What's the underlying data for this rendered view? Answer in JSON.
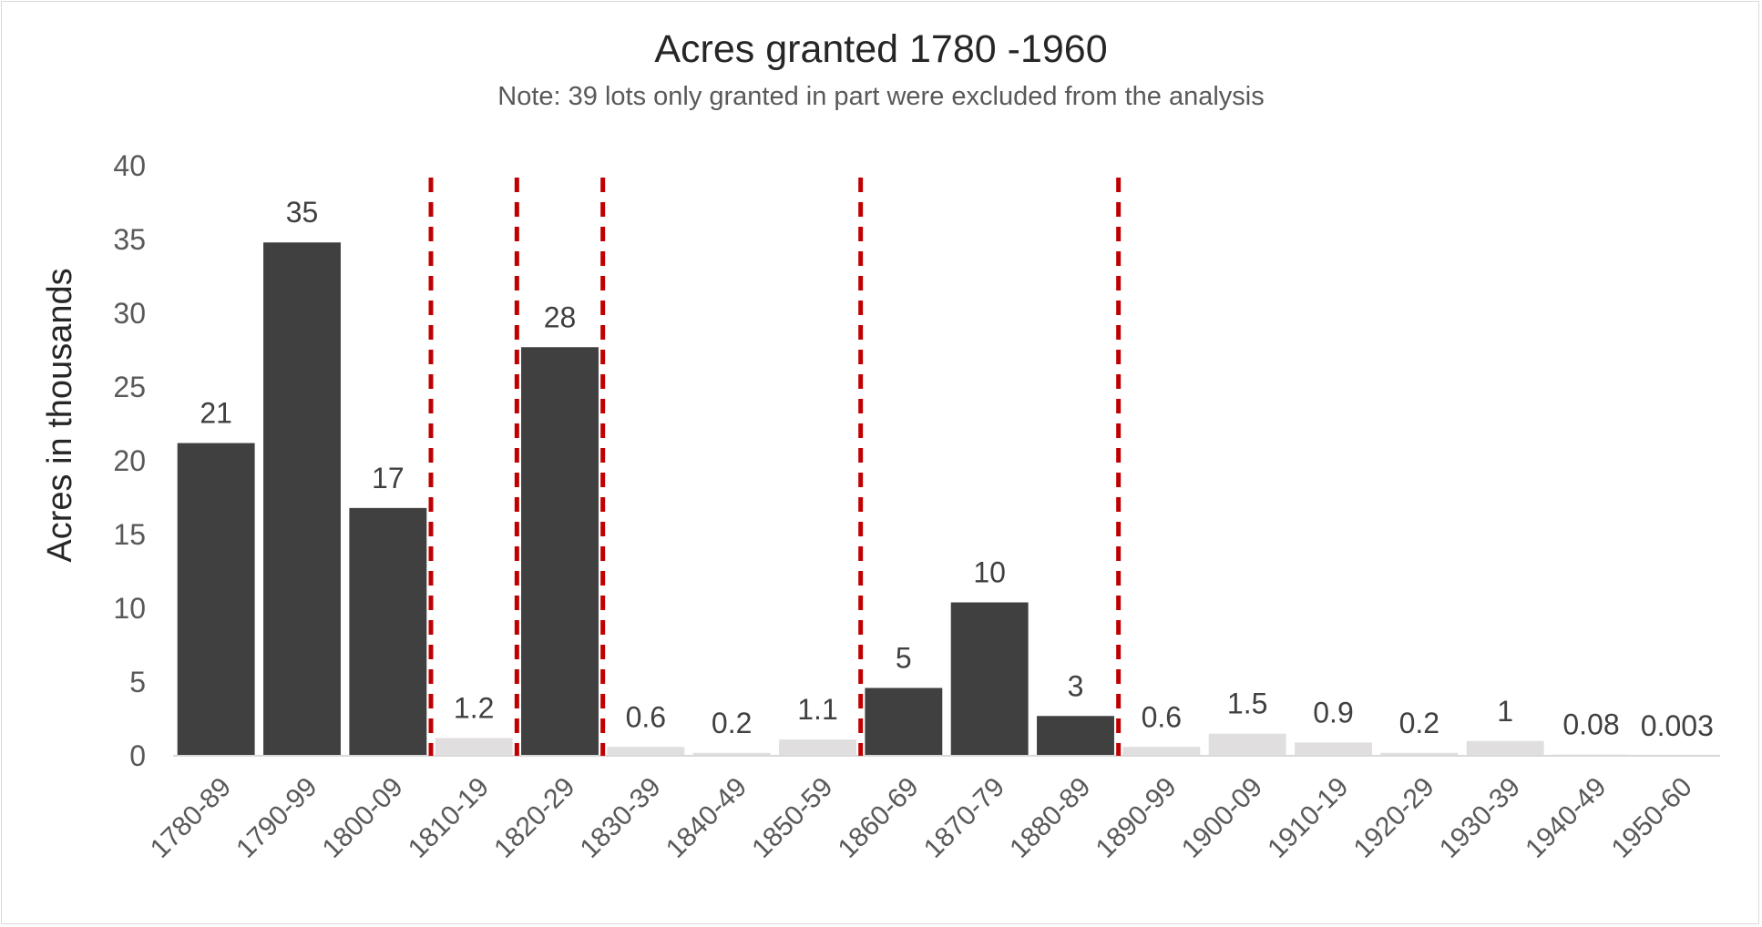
{
  "chart_data": {
    "type": "bar",
    "title": "Acres granted 1780 -1960",
    "subtitle": "Note: 39 lots only granted in part were excluded from the analysis",
    "xlabel": "",
    "ylabel": "Acres in thousands",
    "ylim": [
      0,
      40
    ],
    "yticks": [
      "0",
      "5",
      "10",
      "15",
      "20",
      "25",
      "30",
      "35",
      "40"
    ],
    "grid": false,
    "categories": [
      "1780-89",
      "1790-99",
      "1800-09",
      "1810-19",
      "1820-29",
      "1830-39",
      "1840-49",
      "1850-59",
      "1860-69",
      "1870-79",
      "1880-89",
      "1890-99",
      "1900-09",
      "1910-19",
      "1920-29",
      "1930-39",
      "1940-49",
      "1950-60"
    ],
    "values": [
      21.2,
      34.8,
      16.8,
      1.2,
      27.7,
      0.6,
      0.2,
      1.1,
      4.6,
      10.4,
      2.7,
      0.6,
      1.5,
      0.9,
      0.2,
      1.0,
      0.08,
      0.003
    ],
    "data_labels": [
      "21",
      "35",
      "17",
      "1.2",
      "28",
      "0.6",
      "0.2",
      "1.1",
      "5",
      "10",
      "3",
      "0.6",
      "1.5",
      "0.9",
      "0.2",
      "1",
      "0.08",
      "0.003"
    ],
    "highlighted": [
      true,
      true,
      true,
      false,
      true,
      false,
      false,
      false,
      true,
      true,
      true,
      false,
      false,
      false,
      false,
      false,
      false,
      false
    ],
    "colors": {
      "highlight": "#404040",
      "other": "#e0dedf",
      "divider": "#c00000",
      "axis": "#d9d9d9"
    },
    "divider_lines_after_categories": [
      "1800-09",
      "1810-19",
      "1820-29",
      "1850-59",
      "1880-89"
    ]
  }
}
